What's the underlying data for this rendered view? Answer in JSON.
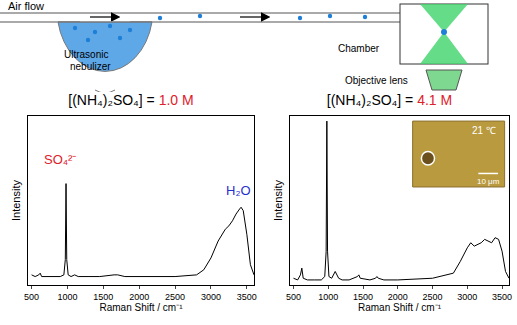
{
  "diagram": {
    "air_flow": "Air flow",
    "nebulizer": "Ultrasonic nebulizer",
    "chamber": "Chamber",
    "objective": "Objective lens"
  },
  "chart_data": [
    {
      "type": "line",
      "title": "[(NH₄)₂SO₄] = 1.0 M",
      "x_label": "Raman Shift / cm⁻¹",
      "y_label": "Intensity",
      "xlim": [
        450,
        3600
      ],
      "xticks": [
        500,
        1000,
        1500,
        2000,
        2500,
        3000,
        3500
      ],
      "ylim": [
        0,
        1
      ],
      "tick_labels": "x",
      "color": "#000000",
      "x": [
        500,
        550,
        600,
        620,
        640,
        700,
        800,
        900,
        950,
        970,
        980,
        990,
        1010,
        1050,
        1100,
        1150,
        1300,
        1450,
        1650,
        1700,
        1800,
        2000,
        2500,
        2800,
        2900,
        3000,
        3100,
        3200,
        3250,
        3300,
        3350,
        3400,
        3420,
        3450,
        3500,
        3550,
        3600
      ],
      "values": [
        0.06,
        0.05,
        0.06,
        0.07,
        0.05,
        0.05,
        0.05,
        0.05,
        0.06,
        0.15,
        0.6,
        0.15,
        0.06,
        0.05,
        0.06,
        0.05,
        0.05,
        0.05,
        0.06,
        0.06,
        0.05,
        0.05,
        0.05,
        0.06,
        0.09,
        0.16,
        0.26,
        0.33,
        0.35,
        0.38,
        0.42,
        0.45,
        0.46,
        0.44,
        0.3,
        0.12,
        0.06
      ],
      "annotations": [
        {
          "text": "SO₄²⁻",
          "x": 900,
          "y": 0.74,
          "color": "#e0202a"
        },
        {
          "text": "H₂O",
          "x": 3380,
          "y": 0.56,
          "color": "#1f2fd0"
        }
      ]
    },
    {
      "type": "line",
      "title": "[(NH₄)₂SO₄] = 4.1 M",
      "x_label": "Raman Shift / cm⁻¹",
      "y_label": "Intensity",
      "xlim": [
        450,
        3600
      ],
      "xticks": [
        500,
        1000,
        1500,
        2000,
        2500,
        3000,
        3500
      ],
      "ylim": [
        0,
        1
      ],
      "tick_labels": "x",
      "color": "#000000",
      "x": [
        500,
        560,
        600,
        620,
        640,
        700,
        800,
        900,
        950,
        970,
        980,
        990,
        1010,
        1050,
        1100,
        1150,
        1200,
        1300,
        1420,
        1440,
        1460,
        1600,
        1680,
        1700,
        1720,
        1800,
        2000,
        2500,
        2800,
        2900,
        3000,
        3050,
        3100,
        3150,
        3200,
        3250,
        3300,
        3350,
        3400,
        3450,
        3500,
        3550,
        3600
      ],
      "values": [
        0.04,
        0.03,
        0.06,
        0.1,
        0.04,
        0.03,
        0.03,
        0.03,
        0.05,
        0.2,
        0.97,
        0.2,
        0.05,
        0.04,
        0.08,
        0.04,
        0.03,
        0.03,
        0.05,
        0.06,
        0.04,
        0.03,
        0.04,
        0.05,
        0.04,
        0.03,
        0.03,
        0.04,
        0.07,
        0.14,
        0.22,
        0.25,
        0.23,
        0.24,
        0.25,
        0.27,
        0.26,
        0.25,
        0.28,
        0.27,
        0.2,
        0.08,
        0.04
      ],
      "inset": {
        "label": "21 ℃",
        "scale_bar": "10 μm"
      }
    }
  ]
}
